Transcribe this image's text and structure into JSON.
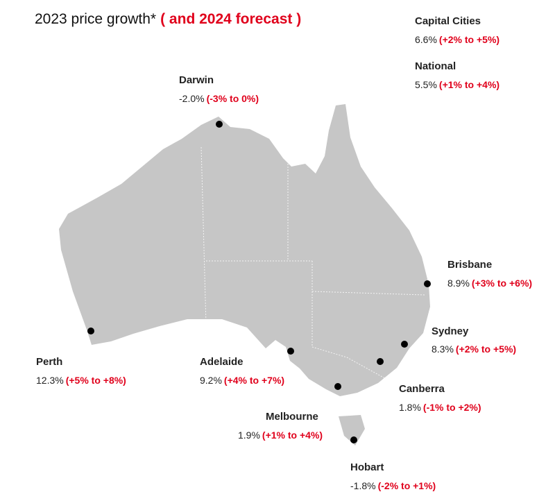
{
  "header": {
    "title": "2023 price growth*",
    "subtitle": "( and 2024 forecast )"
  },
  "summary": [
    {
      "name": "Capital Cities",
      "growth": "6.6%",
      "forecast": "(+2% to +5%)"
    },
    {
      "name": "National",
      "growth": "5.5%",
      "forecast": "(+1% to +4%)"
    }
  ],
  "cities": [
    {
      "name": "Darwin",
      "growth": "-2.0%",
      "forecast": "(-3% to 0%)"
    },
    {
      "name": "Brisbane",
      "growth": "8.9%",
      "forecast": "(+3% to +6%)"
    },
    {
      "name": "Sydney",
      "growth": "8.3%",
      "forecast": "(+2% to +5%)"
    },
    {
      "name": "Canberra",
      "growth": "1.8%",
      "forecast": "(-1% to +2%)"
    },
    {
      "name": "Perth",
      "growth": "12.3%",
      "forecast": "(+5% to +8%)"
    },
    {
      "name": "Adelaide",
      "growth": "9.2%",
      "forecast": "(+4% to +7%)"
    },
    {
      "name": "Melbourne",
      "growth": "1.9%",
      "forecast": "(+1% to +4%)"
    },
    {
      "name": "Hobart",
      "growth": "-1.8%",
      "forecast": "(-2% to +1%)"
    }
  ]
}
